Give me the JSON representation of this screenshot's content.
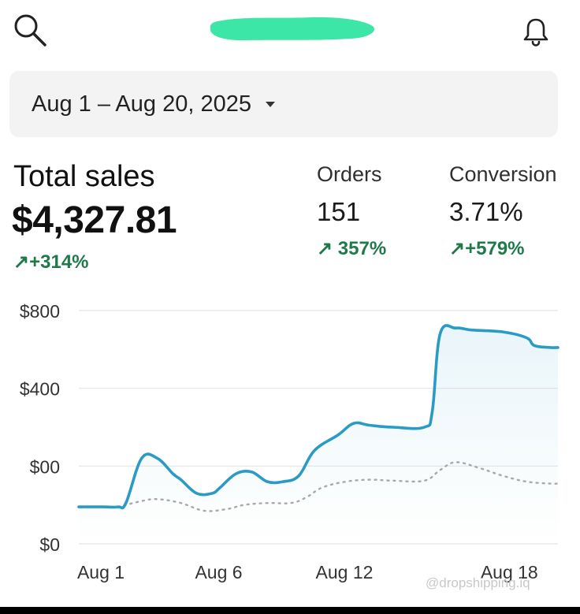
{
  "header": {
    "search_icon": "search-icon",
    "notification_icon": "bell-icon",
    "store_name_redacted_color": "#3be6a6"
  },
  "date_range": {
    "label": "Aug 1 – Aug 20, 2025",
    "dropdown_icon": "caret-down-icon"
  },
  "metrics": {
    "total_sales": {
      "label": "Total sales",
      "value": "$4,327.81",
      "change": "+314%"
    },
    "orders": {
      "label": "Orders",
      "value": "151",
      "change": "357%"
    },
    "conversion": {
      "label": "Conversion",
      "value": "3.71%",
      "change": "+579%"
    },
    "change_arrow": "↗",
    "positive_color": "#1f7a4a"
  },
  "chart_data": {
    "type": "line",
    "y_tick_labels": [
      "$0",
      "$00",
      "$400",
      "$800"
    ],
    "x_tick_labels": [
      "Aug 1",
      "Aug 6",
      "Aug 12",
      "Aug 18"
    ],
    "grid": true,
    "series": [
      {
        "style": "solid",
        "color": "#2a9bc4",
        "fill": true,
        "points": [
          [
            0,
            190
          ],
          [
            3,
            190
          ],
          [
            5,
            190
          ],
          [
            6,
            210
          ],
          [
            8,
            440
          ],
          [
            10,
            440
          ],
          [
            12,
            360
          ],
          [
            13,
            330
          ],
          [
            15,
            260
          ],
          [
            17,
            260
          ],
          [
            18,
            290
          ],
          [
            20,
            360
          ],
          [
            22,
            370
          ],
          [
            24,
            320
          ],
          [
            26,
            320
          ],
          [
            28,
            350
          ],
          [
            30,
            480
          ],
          [
            33,
            560
          ],
          [
            35,
            620
          ],
          [
            37,
            610
          ],
          [
            40,
            600
          ],
          [
            44,
            600
          ],
          [
            45,
            680
          ],
          [
            46,
            1080
          ],
          [
            48,
            1110
          ],
          [
            50,
            1100
          ],
          [
            54,
            1090
          ],
          [
            57,
            1060
          ],
          [
            58,
            1020
          ],
          [
            60,
            1010
          ],
          [
            61,
            1010
          ]
        ]
      },
      {
        "style": "dotted",
        "color": "#aaaaaa",
        "fill": false,
        "points": [
          [
            5,
            190
          ],
          [
            8,
            220
          ],
          [
            10,
            230
          ],
          [
            13,
            210
          ],
          [
            16,
            170
          ],
          [
            19,
            180
          ],
          [
            21,
            200
          ],
          [
            24,
            210
          ],
          [
            27,
            210
          ],
          [
            29,
            240
          ],
          [
            31,
            290
          ],
          [
            34,
            320
          ],
          [
            37,
            330
          ],
          [
            40,
            325
          ],
          [
            44,
            325
          ],
          [
            46,
            380
          ],
          [
            48,
            420
          ],
          [
            51,
            390
          ],
          [
            54,
            350
          ],
          [
            57,
            320
          ],
          [
            60,
            310
          ],
          [
            61,
            310
          ]
        ]
      }
    ]
  },
  "watermark": "@dropshipping.iq"
}
